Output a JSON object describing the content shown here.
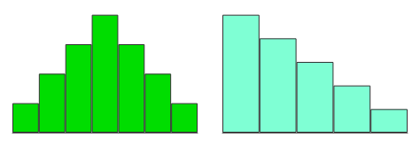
{
  "chart_data": [
    {
      "type": "bar",
      "categories": [
        null,
        null,
        null,
        null,
        null,
        null,
        null
      ],
      "values": [
        1,
        2,
        3,
        4,
        3,
        2,
        1
      ],
      "color": "#00DD00",
      "ylim": [
        0,
        4.2
      ],
      "grid": false,
      "tick_labels": false
    },
    {
      "type": "bar",
      "categories": [
        null,
        null,
        null,
        null,
        null
      ],
      "values": [
        5,
        4,
        3,
        2,
        1
      ],
      "color": "#7FFFD4",
      "ylim": [
        0,
        5.25
      ],
      "grid": false,
      "tick_labels": false
    }
  ]
}
